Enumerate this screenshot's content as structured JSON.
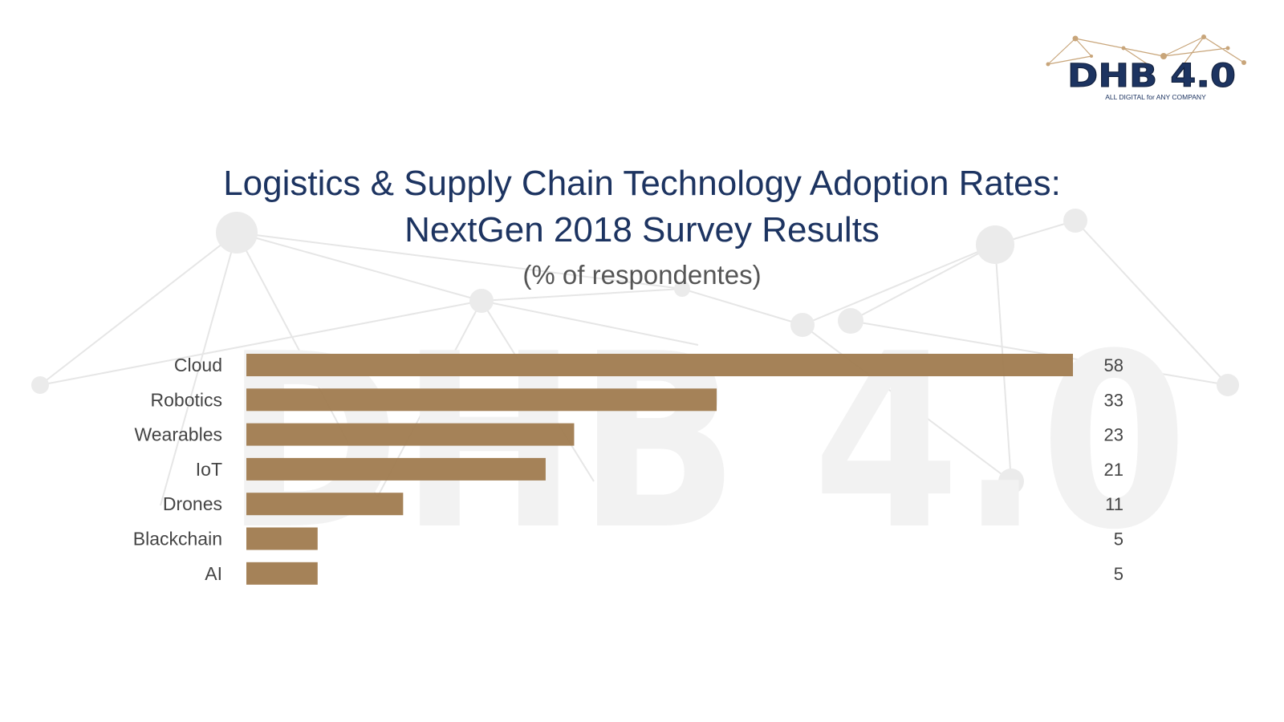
{
  "logo": {
    "text": "DHB 4.0",
    "tagline": "ALL DIGITAL for ANY COMPANY"
  },
  "watermark": {
    "text": "DHB 4.0"
  },
  "chart_data": {
    "type": "bar",
    "orientation": "horizontal",
    "title": "Logistics & Supply Chain Technology Adoption Rates: NextGen 2018 Survey Results",
    "title_lines": [
      "Logistics & Supply Chain Technology Adoption Rates:",
      "NextGen 2018 Survey Results"
    ],
    "subtitle": "(% of respondentes)",
    "categories": [
      "Cloud",
      "Robotics",
      "Wearables",
      "IoT",
      "Drones",
      "Blackchain",
      "AI"
    ],
    "values": [
      58,
      33,
      23,
      21,
      11,
      5,
      5
    ],
    "xlim": [
      0,
      58
    ],
    "grid": false,
    "legend": "none",
    "bar_color": "#a07b4f"
  },
  "colors": {
    "title": "#1d3461",
    "bar": "#a07b4f",
    "labels": "#444444",
    "logo_text": "#1d3461",
    "logo_network": "#c8a57a"
  }
}
